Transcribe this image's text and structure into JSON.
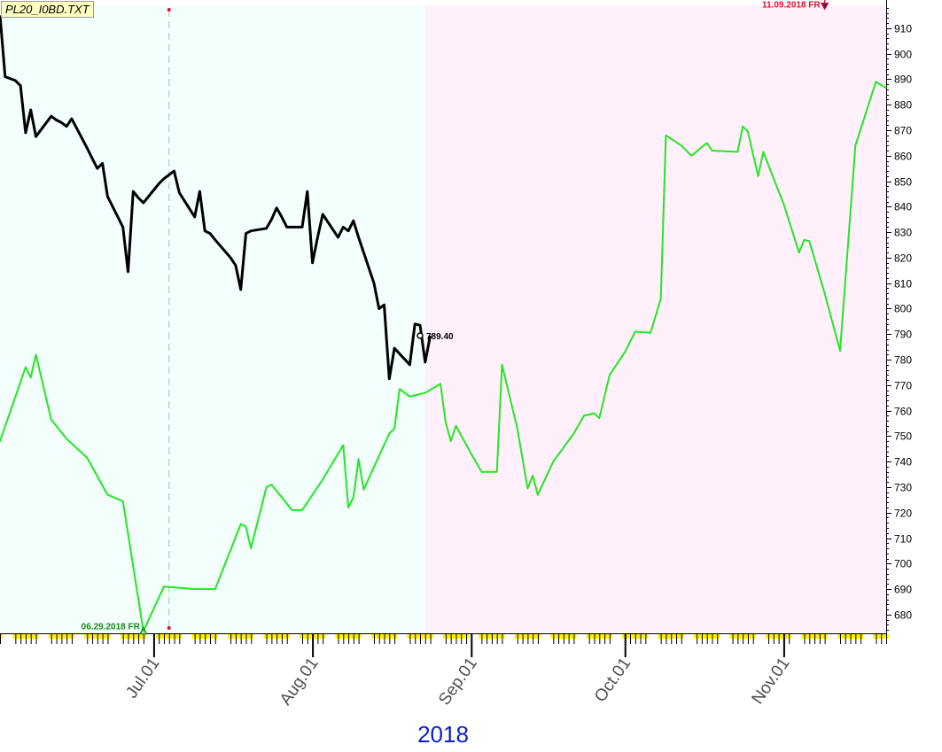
{
  "title": "PL20_I0BD.TXT",
  "xlabel": "2018",
  "colors": {
    "bg_left": "#f2fffd",
    "bg_right": "#fff0fc",
    "projection": "#22e822",
    "price": "#000000",
    "marker_low": "#1a8a1a",
    "marker_high": "#e0102a",
    "year": "#1020c8",
    "tick_yellow": "#ffee00"
  },
  "chart_data": {
    "type": "line",
    "title": "PL20_I0BD.TXT",
    "xlabel": "2018",
    "ylabel": "",
    "x_tick_labels": [
      "Jul.01",
      "Aug.01",
      "Sep.01",
      "Oct.01",
      "Nov.01"
    ],
    "y_ticks": [
      680,
      690,
      700,
      710,
      720,
      730,
      740,
      750,
      760,
      770,
      780,
      790,
      800,
      810,
      820,
      830,
      840,
      850,
      860,
      870,
      880,
      890,
      900,
      910
    ],
    "ylim": [
      673,
      919
    ],
    "xlim": [
      "2018-06-01",
      "2018-11-21"
    ],
    "grid": false,
    "annotations": [
      {
        "label": "06.29.2018 FR",
        "date": "2018-06-29",
        "value": 673.5,
        "color": "#1a8a1a"
      },
      {
        "label": "11.09.2018 FR",
        "date": "2018-11-09",
        "value": 918.5,
        "color": "#e0102a"
      },
      {
        "label": "789.40",
        "date": "2018-08-22",
        "value": 789.4,
        "color": "#000000"
      }
    ],
    "vertical_marker_date": "2018-07-04",
    "shade_split_date": "2018-08-23",
    "series": [
      {
        "name": "",
        "color": "#000000",
        "points": [
          [
            "2018-06-01",
            915
          ],
          [
            "2018-06-01",
            915.0
          ],
          [
            "2018-06-01",
            915.0
          ],
          [
            "2018-06-01",
            915.0
          ],
          [
            "2018-06-01",
            915.0
          ],
          [
            "2018-06-02",
            891.0
          ],
          [
            "2018-06-04",
            889.5
          ],
          [
            "2018-06-05",
            887.5
          ],
          [
            "2018-06-06",
            869.0
          ],
          [
            "2018-06-07",
            878.0
          ],
          [
            "2018-06-08",
            867.5
          ],
          [
            "2018-06-11",
            875.5
          ],
          [
            "2018-06-12",
            874.0
          ],
          [
            "2018-06-13",
            873.0
          ],
          [
            "2018-06-14",
            871.5
          ],
          [
            "2018-06-15",
            874.5
          ],
          [
            "2018-06-18",
            863.0
          ],
          [
            "2018-06-19",
            859.0
          ],
          [
            "2018-06-20",
            855.0
          ],
          [
            "2018-06-21",
            857.0
          ],
          [
            "2018-06-22",
            844.0
          ],
          [
            "2018-06-25",
            832.0
          ],
          [
            "2018-06-26",
            814.5
          ],
          [
            "2018-06-27",
            846.0
          ],
          [
            "2018-06-28",
            843.5
          ],
          [
            "2018-06-29",
            841.5
          ],
          [
            "2018-07-02",
            849.0
          ],
          [
            "2018-07-03",
            851.0
          ],
          [
            "2018-07-05",
            854.0
          ],
          [
            "2018-07-06",
            845.5
          ],
          [
            "2018-07-09",
            836.0
          ],
          [
            "2018-07-10",
            846.0
          ],
          [
            "2018-07-11",
            830.5
          ],
          [
            "2018-07-12",
            829.5
          ],
          [
            "2018-07-13",
            827.0
          ],
          [
            "2018-07-16",
            820.0
          ],
          [
            "2018-07-17",
            817.0
          ],
          [
            "2018-07-18",
            807.5
          ],
          [
            "2018-07-19",
            829.5
          ],
          [
            "2018-07-20",
            830.5
          ],
          [
            "2018-07-23",
            831.5
          ],
          [
            "2018-07-24",
            835.0
          ],
          [
            "2018-07-25",
            839.5
          ],
          [
            "2018-07-26",
            836.0
          ],
          [
            "2018-07-27",
            832.0
          ],
          [
            "2018-07-30",
            832.0
          ],
          [
            "2018-07-31",
            846.0
          ],
          [
            "2018-08-01",
            818.0
          ],
          [
            "2018-08-02",
            828.0
          ],
          [
            "2018-08-03",
            837.0
          ],
          [
            "2018-08-06",
            828.0
          ],
          [
            "2018-08-07",
            832.0
          ],
          [
            "2018-08-08",
            830.5
          ],
          [
            "2018-08-09",
            834.5
          ],
          [
            "2018-08-10",
            828.0
          ],
          [
            "2018-08-13",
            810.0
          ],
          [
            "2018-08-14",
            800.0
          ],
          [
            "2018-08-15",
            801.5
          ],
          [
            "2018-08-16",
            772.5
          ],
          [
            "2018-08-17",
            784.5
          ],
          [
            "2018-08-20",
            778.0
          ],
          [
            "2018-08-21",
            794.0
          ],
          [
            "2018-08-22",
            793.5
          ],
          [
            "2018-08-23",
            779.0
          ],
          [
            "2018-08-24",
            789.4
          ]
        ]
      },
      {
        "name": "",
        "color": "#22e822",
        "points": [
          [
            "2018-06-01",
            749.0
          ],
          [
            "2018-06-01",
            748.0
          ],
          [
            "2018-06-06",
            777.0
          ],
          [
            "2018-06-07",
            773.0
          ],
          [
            "2018-06-08",
            782.0
          ],
          [
            "2018-06-11",
            756.5
          ],
          [
            "2018-06-14",
            749.0
          ],
          [
            "2018-06-18",
            741.5
          ],
          [
            "2018-06-22",
            727.0
          ],
          [
            "2018-06-25",
            724.5
          ],
          [
            "2018-06-29",
            673.5
          ],
          [
            "2018-07-03",
            691.0
          ],
          [
            "2018-07-09",
            690.0
          ],
          [
            "2018-07-13",
            690.0
          ],
          [
            "2018-07-18",
            715.5
          ],
          [
            "2018-07-19",
            714.5
          ],
          [
            "2018-07-20",
            706.0
          ],
          [
            "2018-07-23",
            730.0
          ],
          [
            "2018-07-24",
            731.0
          ],
          [
            "2018-07-28",
            721.0
          ],
          [
            "2018-07-30",
            721.0
          ],
          [
            "2018-08-03",
            733.0
          ],
          [
            "2018-08-07",
            746.5
          ],
          [
            "2018-08-08",
            722.0
          ],
          [
            "2018-08-09",
            726.0
          ],
          [
            "2018-08-10",
            741.0
          ],
          [
            "2018-08-11",
            729.0
          ],
          [
            "2018-08-16",
            751.0
          ],
          [
            "2018-08-17",
            753.0
          ],
          [
            "2018-08-18",
            768.5
          ],
          [
            "2018-08-20",
            765.5
          ],
          [
            "2018-08-23",
            767.0
          ],
          [
            "2018-08-26",
            770.5
          ],
          [
            "2018-08-27",
            755.5
          ],
          [
            "2018-08-28",
            748.0
          ],
          [
            "2018-08-29",
            754.0
          ],
          [
            "2018-09-01",
            743.0
          ],
          [
            "2018-09-03",
            736.0
          ],
          [
            "2018-09-06",
            736.0
          ],
          [
            "2018-09-07",
            778.0
          ],
          [
            "2018-09-10",
            753.0
          ],
          [
            "2018-09-12",
            729.5
          ],
          [
            "2018-09-13",
            734.5
          ],
          [
            "2018-09-14",
            727.0
          ],
          [
            "2018-09-17",
            740.0
          ],
          [
            "2018-09-21",
            751.0
          ],
          [
            "2018-09-23",
            758.0
          ],
          [
            "2018-09-25",
            759.0
          ],
          [
            "2018-09-26",
            757.0
          ],
          [
            "2018-09-28",
            774.0
          ],
          [
            "2018-10-01",
            783.0
          ],
          [
            "2018-10-03",
            791.0
          ],
          [
            "2018-10-06",
            790.5
          ],
          [
            "2018-10-08",
            804.0
          ],
          [
            "2018-10-09",
            868.0
          ],
          [
            "2018-10-12",
            864.0
          ],
          [
            "2018-10-14",
            860.0
          ],
          [
            "2018-10-17",
            865.0
          ],
          [
            "2018-10-18",
            862.0
          ],
          [
            "2018-10-23",
            861.5
          ],
          [
            "2018-10-24",
            871.5
          ],
          [
            "2018-10-25",
            869.5
          ],
          [
            "2018-10-27",
            852.0
          ],
          [
            "2018-10-28",
            861.5
          ],
          [
            "2018-11-01",
            841.0
          ],
          [
            "2018-11-04",
            822.0
          ],
          [
            "2018-11-05",
            827.0
          ],
          [
            "2018-11-06",
            826.5
          ],
          [
            "2018-11-09",
            806.0
          ],
          [
            "2018-11-12",
            783.5
          ],
          [
            "2018-11-15",
            864.0
          ],
          [
            "2018-11-19",
            889.0
          ],
          [
            "2018-11-21",
            886.5
          ]
        ]
      }
    ]
  }
}
